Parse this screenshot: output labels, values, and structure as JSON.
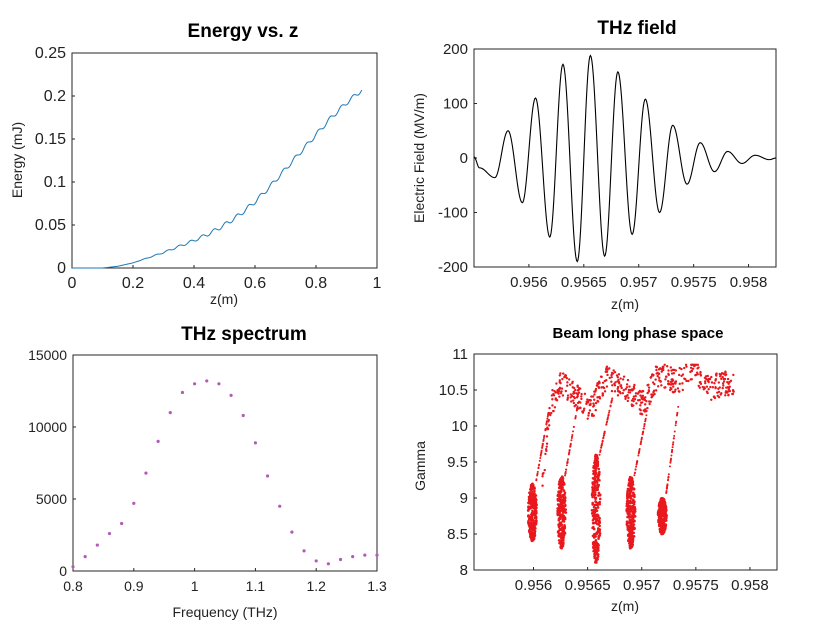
{
  "chart_data": [
    {
      "type": "line",
      "title": "Energy vs. z",
      "xlabel": "z(m)",
      "ylabel": "Energy (mJ)",
      "xlim": [
        0,
        1
      ],
      "ylim": [
        0,
        0.25
      ],
      "xticks": [
        "0",
        "0.2",
        "0.4",
        "0.6",
        "0.8",
        "1"
      ],
      "yticks": [
        "0",
        "0.05",
        "0.1",
        "0.15",
        "0.2",
        "0.25"
      ],
      "grid": false,
      "line_color": "#1f77b4",
      "x": [
        0,
        0.05,
        0.1,
        0.15,
        0.2,
        0.25,
        0.3,
        0.35,
        0.4,
        0.45,
        0.5,
        0.55,
        0.6,
        0.65,
        0.7,
        0.75,
        0.8,
        0.85,
        0.9,
        0.95
      ],
      "y": [
        0,
        0,
        0,
        0.002,
        0.006,
        0.012,
        0.018,
        0.025,
        0.032,
        0.04,
        0.05,
        0.062,
        0.077,
        0.095,
        0.115,
        0.135,
        0.155,
        0.175,
        0.192,
        0.207
      ]
    },
    {
      "type": "line",
      "title": "THz field",
      "xlabel": "z(m)",
      "ylabel": "Electric Field (MV/m)",
      "xlim": [
        0.9555,
        0.95825
      ],
      "ylim": [
        -200,
        200
      ],
      "xticks": [
        "0.956",
        "0.9565",
        "0.957",
        "0.9575",
        "0.958"
      ],
      "yticks": [
        "-200",
        "-100",
        "0",
        "100",
        "200"
      ],
      "grid": false,
      "line_color": "#000000",
      "x": [
        0.9555,
        0.95555,
        0.95569,
        0.95581,
        0.95594,
        0.95606,
        0.95619,
        0.95631,
        0.95644,
        0.95656,
        0.95669,
        0.95681,
        0.95694,
        0.95706,
        0.95719,
        0.95731,
        0.95744,
        0.95756,
        0.95769,
        0.95781,
        0.95794,
        0.95806,
        0.95819,
        0.95825
      ],
      "y": [
        2,
        -18,
        -36,
        50,
        -82,
        110,
        -145,
        172,
        -190,
        188,
        -180,
        158,
        -140,
        108,
        -100,
        60,
        -48,
        28,
        -25,
        12,
        -10,
        5,
        -3,
        0
      ]
    },
    {
      "type": "scatter",
      "title": "THz spectrum",
      "xlabel": "Frequency (THz)",
      "ylabel": "",
      "xlim": [
        0.8,
        1.3
      ],
      "ylim": [
        0,
        15000
      ],
      "xticks": [
        "0.8",
        "0.9",
        "1",
        "1.1",
        "1.2",
        "1.3"
      ],
      "yticks": [
        "0",
        "5000",
        "10000",
        "15000"
      ],
      "grid": false,
      "marker_color": "#b35ab8",
      "x": [
        0.8,
        0.82,
        0.84,
        0.86,
        0.88,
        0.9,
        0.92,
        0.94,
        0.96,
        0.98,
        1.0,
        1.02,
        1.04,
        1.06,
        1.08,
        1.1,
        1.12,
        1.14,
        1.16,
        1.18,
        1.2,
        1.22,
        1.24,
        1.26,
        1.28,
        1.3
      ],
      "y": [
        300,
        1000,
        1800,
        2600,
        3300,
        4700,
        6800,
        9000,
        11000,
        12400,
        13000,
        13200,
        13000,
        12200,
        10800,
        8900,
        6600,
        4500,
        2700,
        1400,
        700,
        500,
        800,
        1000,
        1100,
        1100
      ]
    },
    {
      "type": "scatter",
      "title": "Beam long phase space",
      "xlabel": "z(m)",
      "ylabel": "Gamma",
      "xlim": [
        0.95545,
        0.95825
      ],
      "ylim": [
        8,
        11
      ],
      "xticks": [
        "0.956",
        "0.9565",
        "0.957",
        "0.9575",
        "0.958"
      ],
      "yticks": [
        "8",
        "8.5",
        "9",
        "9.5",
        "10",
        "10.5",
        "11"
      ],
      "grid": false,
      "marker_color": "#e8191e",
      "clusters": [
        {
          "x": 0.95599,
          "y_min": 8.4,
          "y_max": 9.2
        },
        {
          "x": 0.95626,
          "y_min": 8.3,
          "y_max": 9.3
        },
        {
          "x": 0.95658,
          "y_min": 8.1,
          "y_max": 9.6
        },
        {
          "x": 0.9569,
          "y_min": 8.3,
          "y_max": 9.3
        },
        {
          "x": 0.95719,
          "y_min": 8.5,
          "y_max": 9.0
        }
      ],
      "band": {
        "x": [
          0.95608,
          0.95616,
          0.95626,
          0.9564,
          0.95652,
          0.95668,
          0.95686,
          0.95702,
          0.95716,
          0.95732,
          0.95748,
          0.95762,
          0.95775,
          0.95785
        ],
        "y": [
          9.2,
          10.3,
          10.6,
          10.4,
          10.2,
          10.7,
          10.5,
          10.3,
          10.75,
          10.6,
          10.8,
          10.5,
          10.6,
          10.6
        ]
      }
    }
  ]
}
